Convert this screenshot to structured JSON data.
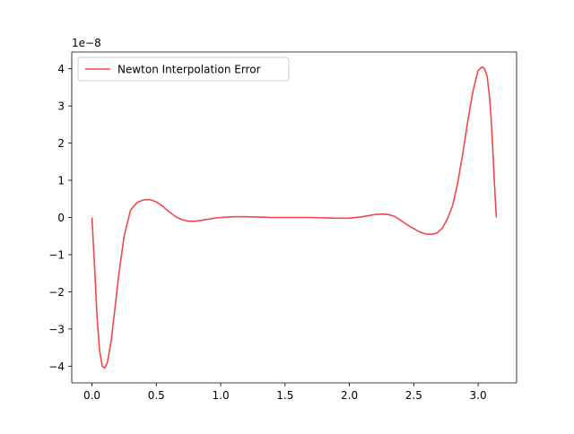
{
  "chart_data": {
    "type": "line",
    "title": "",
    "xlabel": "",
    "ylabel": "",
    "y_scale_label": "1e−8",
    "xlim": [
      -0.157,
      3.299
    ],
    "ylim": [
      -4.45,
      4.45
    ],
    "x_ticks": [
      0.0,
      0.5,
      1.0,
      1.5,
      2.0,
      2.5,
      3.0
    ],
    "x_tick_labels": [
      "0.0",
      "0.5",
      "1.0",
      "1.5",
      "2.0",
      "2.5",
      "3.0"
    ],
    "y_ticks": [
      -4,
      -3,
      -2,
      -1,
      0,
      1,
      2,
      3,
      4
    ],
    "y_tick_labels": [
      "−4",
      "−3",
      "−2",
      "−1",
      "0",
      "1",
      "2",
      "3",
      "4"
    ],
    "grid": false,
    "legend": {
      "position": "top-left"
    },
    "series": [
      {
        "name": "Newton Interpolation Error",
        "color": "#f24848",
        "x": [
          0.0,
          0.02,
          0.04,
          0.06,
          0.08,
          0.1,
          0.12,
          0.15,
          0.18,
          0.21,
          0.25,
          0.3,
          0.35,
          0.4,
          0.45,
          0.5,
          0.55,
          0.6,
          0.65,
          0.7,
          0.75,
          0.8,
          0.85,
          0.9,
          0.95,
          1.0,
          1.1,
          1.2,
          1.3,
          1.4,
          1.5,
          1.6,
          1.7,
          1.8,
          1.9,
          2.0,
          2.1,
          2.15,
          2.2,
          2.25,
          2.3,
          2.35,
          2.4,
          2.45,
          2.5,
          2.55,
          2.6,
          2.65,
          2.68,
          2.72,
          2.76,
          2.8,
          2.84,
          2.88,
          2.92,
          2.96,
          3.0,
          3.03,
          3.05,
          3.07,
          3.09,
          3.1,
          3.11,
          3.12,
          3.13,
          3.1416
        ],
        "y": [
          0.0,
          -1.3,
          -2.7,
          -3.6,
          -4.0,
          -4.05,
          -3.9,
          -3.3,
          -2.4,
          -1.5,
          -0.5,
          0.2,
          0.4,
          0.47,
          0.48,
          0.42,
          0.3,
          0.15,
          0.02,
          -0.06,
          -0.1,
          -0.1,
          -0.08,
          -0.05,
          -0.02,
          0.0,
          0.02,
          0.02,
          0.01,
          0.0,
          0.0,
          0.0,
          0.0,
          -0.01,
          -0.02,
          -0.02,
          0.02,
          0.05,
          0.08,
          0.09,
          0.08,
          0.03,
          -0.08,
          -0.2,
          -0.3,
          -0.4,
          -0.45,
          -0.45,
          -0.42,
          -0.3,
          -0.05,
          0.3,
          0.9,
          1.7,
          2.6,
          3.4,
          3.95,
          4.05,
          4.0,
          3.8,
          3.2,
          2.7,
          2.1,
          1.4,
          0.7,
          0.0
        ]
      }
    ]
  }
}
